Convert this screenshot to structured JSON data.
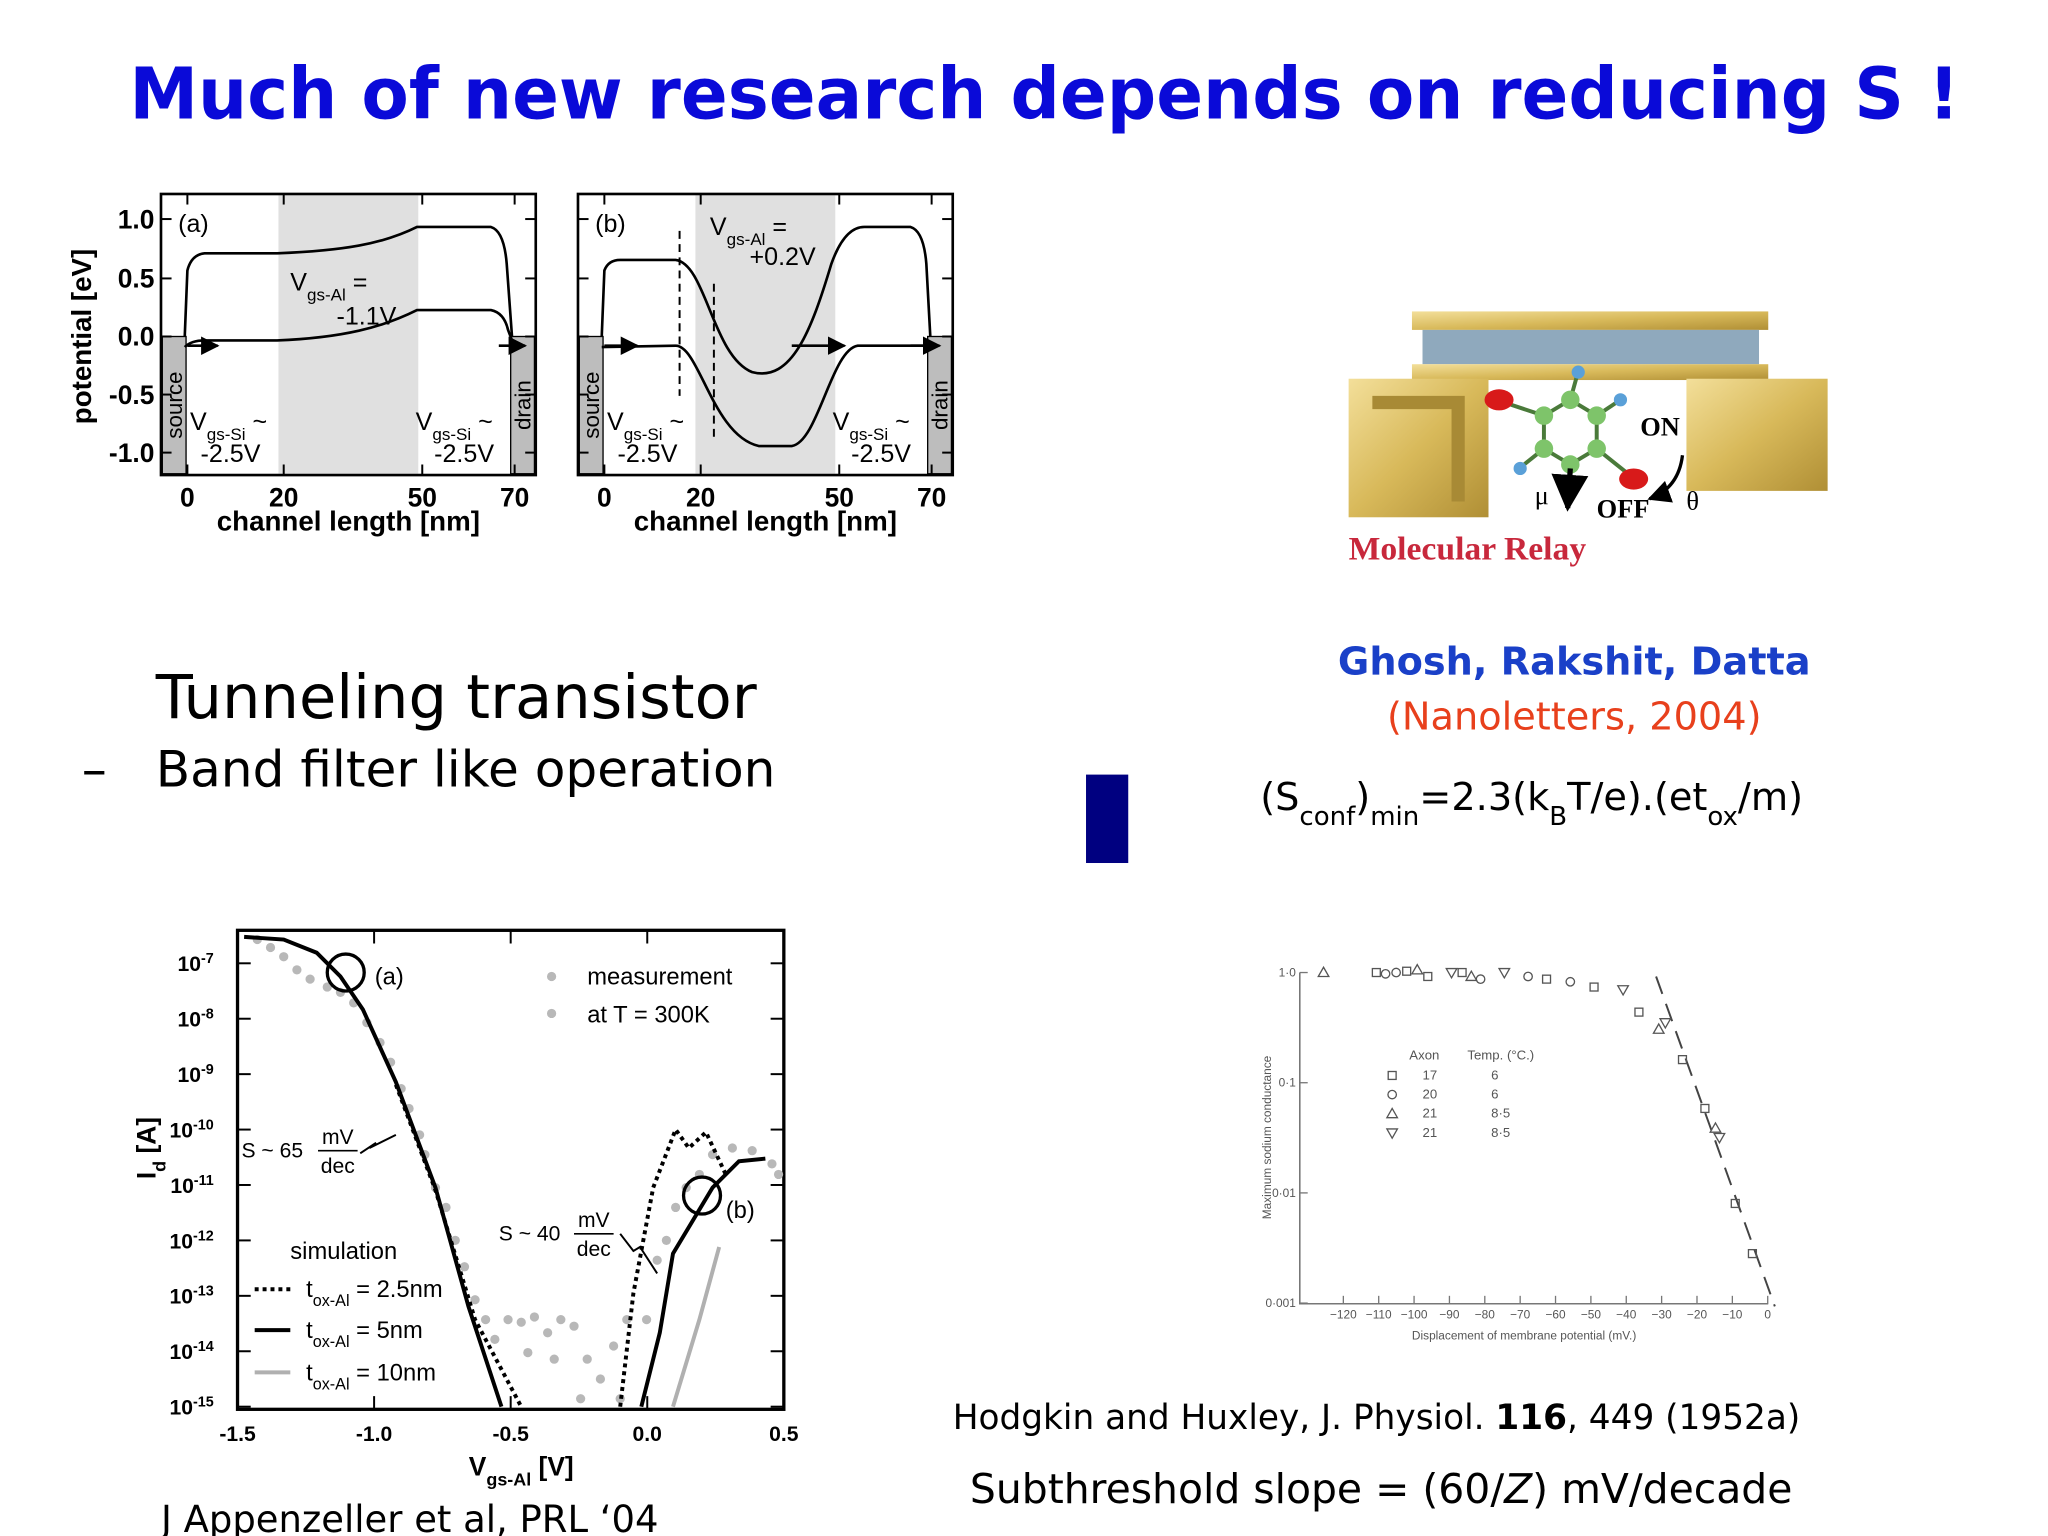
{
  "title": "Much of new research depends on reducing S !",
  "band_plots": {
    "y_label": "potential  [eV]",
    "x_label": "channel length  [nm]",
    "yticks": [
      "1.0",
      "0.5",
      "0.0",
      "-0.5",
      "-1.0"
    ],
    "xticks": [
      "0",
      "20",
      "50",
      "70"
    ],
    "source": "source",
    "drain": "drain",
    "panels": [
      {
        "tag": "(a)",
        "gate": [
          "V",
          "gs-Al",
          " ="
        ],
        "gate_value": "-1.1V",
        "left": [
          "V",
          "gs-Si",
          " ~"
        ],
        "left_value": "-2.5V",
        "right": [
          "V",
          "gs-Si",
          " ~"
        ],
        "right_value": "-2.5V"
      },
      {
        "tag": "(b)",
        "gate": [
          "V",
          "gs-Al",
          " ="
        ],
        "gate_value": "+0.2V",
        "left": [
          "V",
          "gs-Si",
          " ~"
        ],
        "left_value": "-2.5V",
        "right": [
          "V",
          "gs-Si",
          " ~"
        ],
        "right_value": "-2.5V"
      }
    ]
  },
  "relay": {
    "on": "ON",
    "off": "OFF",
    "mu": "μ",
    "theta": "θ",
    "caption": "Molecular Relay"
  },
  "reference": {
    "authors": "Ghosh, Rakshit, Datta",
    "journal": "(Nanoletters, 2004)",
    "formula": [
      "(S",
      "conf",
      ")",
      "min",
      "=2.3(k",
      "B",
      "T/e).(et",
      "ox",
      "/m)"
    ]
  },
  "tunneling": {
    "heading": "Tunneling transistor",
    "bullet": "–",
    "item": "Band filter like operation"
  },
  "id_plot": {
    "y_label": [
      "I",
      "d",
      "  [A]"
    ],
    "ytick_base": "10",
    "ytick_exponents": [
      "-7",
      "-8",
      "-9",
      "-10",
      "-11",
      "-12",
      "-13",
      "-14",
      "-15"
    ],
    "xticks": [
      "-1.5",
      "-1.0",
      "-0.5",
      "0.0",
      "0.5"
    ],
    "x_label": [
      "V",
      "gs-Al",
      "  [V]"
    ],
    "tags": [
      "(a)",
      "(b)"
    ],
    "measurement": [
      "measurement",
      "at T = 300K"
    ],
    "slopes": [
      {
        "text": "S ~ 65",
        "num": "mV",
        "den": "dec"
      },
      {
        "text": "S ~ 40",
        "num": "mV",
        "den": "dec"
      }
    ],
    "simulation": "simulation",
    "legend": [
      [
        "t",
        "ox-Al",
        " = 2.5nm"
      ],
      [
        "t",
        "ox-Al",
        " = 5nm"
      ],
      [
        "t",
        "ox-Al",
        " = 10nm"
      ]
    ],
    "citation": "J Appenzeller et al, PRL ‘04"
  },
  "hh_plot": {
    "y_label": "Maximum sodium conductance",
    "yticks": [
      "1·0",
      "0·1",
      "0·01",
      "0·001"
    ],
    "xticks": [
      "−120",
      "−110",
      "−100",
      "−90",
      "−80",
      "−70",
      "−60",
      "−50",
      "−40",
      "−30",
      "−20",
      "−10",
      "0"
    ],
    "x_label": "Displacement of membrane potential (mV.)",
    "table": {
      "header": [
        "Axon",
        "Temp. (°C.)"
      ],
      "rows": [
        [
          "17",
          "6"
        ],
        [
          "20",
          "6"
        ],
        [
          "21",
          "8·5"
        ],
        [
          "21",
          "8·5"
        ]
      ]
    },
    "citation": [
      "Hodgkin and Huxley, J. Physiol. ",
      "116",
      ", 449 (1952a)"
    ],
    "slope": [
      "Subthreshold slope = (60/",
      "Z",
      ") mV/decade"
    ]
  }
}
